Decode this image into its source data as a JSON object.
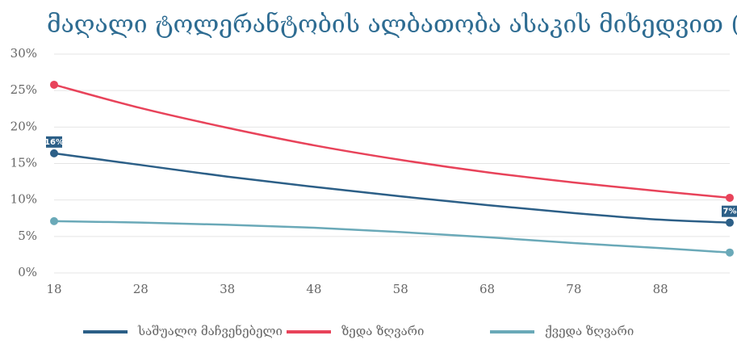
{
  "chart_data": {
    "type": "line",
    "title": "მაღალი ტოლერანტობის ალბათობა ასაკის მიხედვით (%)",
    "x": [
      18,
      28,
      38,
      48,
      58,
      68,
      78,
      88,
      96
    ],
    "series": [
      {
        "name": "საშუალო მაჩვენებელი",
        "color": "#2c5f87",
        "values": [
          16.4,
          14.8,
          13.2,
          11.8,
          10.5,
          9.3,
          8.2,
          7.3,
          6.9
        ],
        "value_labels": [
          "16%",
          null,
          null,
          null,
          null,
          null,
          null,
          null,
          "7%"
        ]
      },
      {
        "name": "ზედა ზღვარი",
        "color": "#e8435a",
        "values": [
          25.8,
          22.6,
          19.9,
          17.5,
          15.5,
          13.8,
          12.4,
          11.2,
          10.3
        ]
      },
      {
        "name": "ქვედა ზღვარი",
        "color": "#6aa9b8",
        "values": [
          7.1,
          6.9,
          6.6,
          6.2,
          5.6,
          4.9,
          4.1,
          3.4,
          2.8
        ]
      }
    ],
    "xlim": [
      18,
      96
    ],
    "xticks": [
      18,
      28,
      38,
      48,
      58,
      68,
      78,
      88
    ],
    "ylim": [
      0,
      30
    ],
    "yticks": [
      {
        "value": 0,
        "label": "0%"
      },
      {
        "value": 5,
        "label": "5%"
      },
      {
        "value": 10,
        "label": "10%"
      },
      {
        "value": 15,
        "label": "15%"
      },
      {
        "value": 20,
        "label": "20%"
      },
      {
        "value": 25,
        "label": "25%"
      },
      {
        "value": 30,
        "label": "30%"
      }
    ],
    "grid": true,
    "legend": "bottom"
  }
}
